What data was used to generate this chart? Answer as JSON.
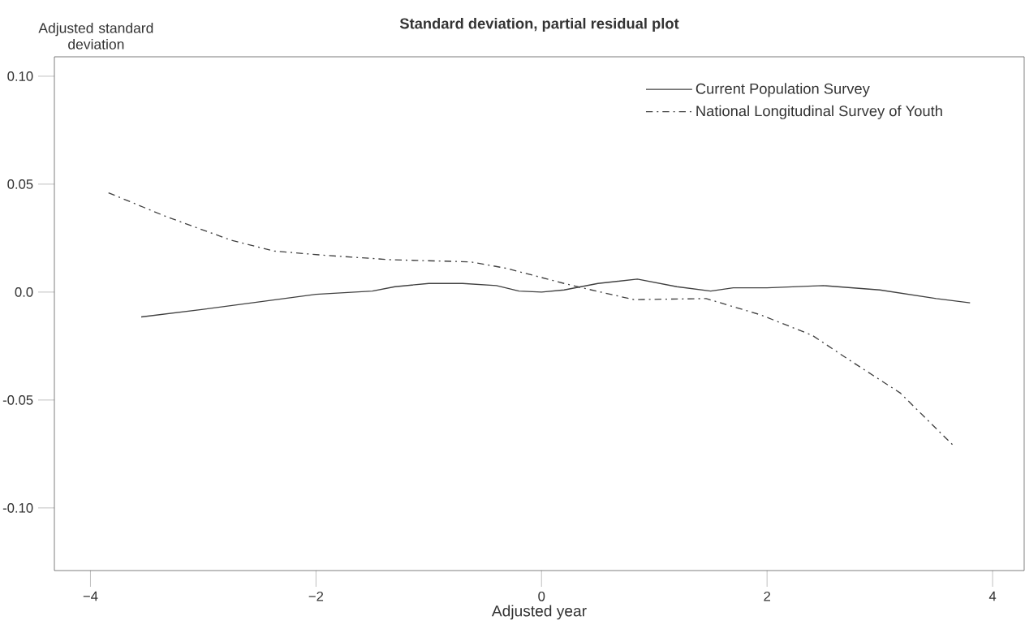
{
  "chart_data": {
    "type": "line",
    "title": "Standard deviation, partial residual plot",
    "xlabel": "Adjusted year",
    "ylabel": "Adjusted standard deviation",
    "xlim": [
      -4.32,
      4.28
    ],
    "ylim": [
      -0.129,
      0.109
    ],
    "xticks": [
      {
        "value": -4,
        "label": "−4"
      },
      {
        "value": -2,
        "label": "−2"
      },
      0,
      2,
      4
    ],
    "yticks": [
      {
        "value": -0.1,
        "label": "-0.10"
      },
      {
        "value": -0.05,
        "label": "-0.05"
      },
      {
        "value": 0,
        "label": "0.0"
      },
      {
        "value": 0.05,
        "label": "0.05"
      },
      {
        "value": 0.1,
        "label": "0.10"
      }
    ],
    "grid": false,
    "legend": "top right",
    "marker": "none",
    "series": [
      {
        "name": "Current Population Survey",
        "color": "#404040",
        "line_style": "solid",
        "x": [
          -3.55,
          -3.0,
          -2.5,
          -2.0,
          -1.5,
          -1.3,
          -1.0,
          -0.7,
          -0.4,
          -0.2,
          0.0,
          0.2,
          0.5,
          0.85,
          1.2,
          1.5,
          1.7,
          2.0,
          2.5,
          3.0,
          3.5,
          3.8
        ],
        "values": [
          -0.0115,
          -0.008,
          -0.0045,
          -0.001,
          0.0005,
          0.0025,
          0.004,
          0.004,
          0.003,
          0.0005,
          0.0,
          0.001,
          0.004,
          0.006,
          0.0025,
          0.0005,
          0.002,
          0.002,
          0.003,
          0.001,
          -0.003,
          -0.005
        ]
      },
      {
        "name": "National Longitudinal Survey of Youth",
        "color": "#404040",
        "line_style": "dashed",
        "x": [
          -3.84,
          -3.33,
          -2.75,
          -2.37,
          -1.91,
          -1.34,
          -0.63,
          -0.31,
          0.2,
          0.4,
          0.82,
          1.46,
          1.94,
          2.4,
          2.73,
          3.18,
          3.66
        ],
        "values": [
          0.046,
          0.035,
          0.024,
          0.019,
          0.017,
          0.015,
          0.014,
          0.011,
          0.004,
          0.0015,
          -0.0035,
          -0.003,
          -0.0105,
          -0.02,
          -0.0315,
          -0.0467,
          -0.0715
        ]
      }
    ]
  }
}
